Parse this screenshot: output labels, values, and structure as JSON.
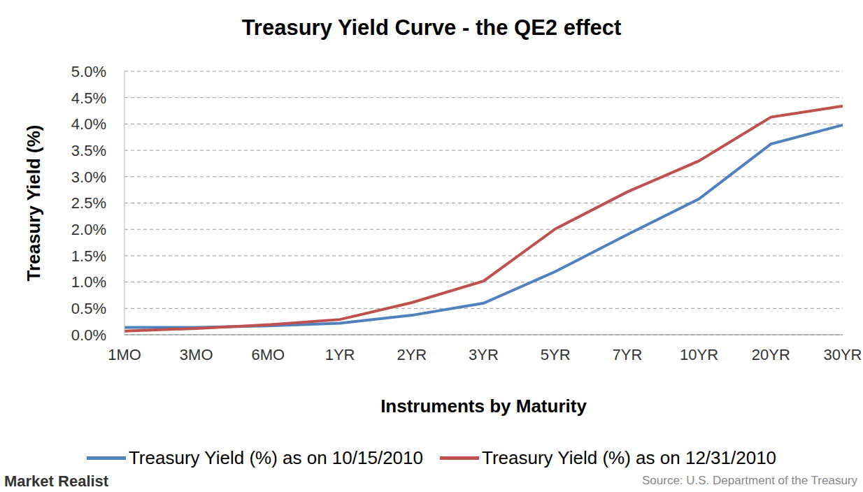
{
  "chart_data": {
    "type": "line",
    "title": "Treasury Yield Curve - the QE2 effect",
    "x_label": "Instruments by Maturity",
    "y_label": "Treasury Yield (%)",
    "categories": [
      "1MO",
      "3MO",
      "6MO",
      "1YR",
      "2YR",
      "3YR",
      "5YR",
      "7YR",
      "10YR",
      "20YR",
      "30YR"
    ],
    "series": [
      {
        "name": "Treasury Yield (%) as on 10/15/2010",
        "color": "#4f81bd",
        "values": [
          0.14,
          0.14,
          0.17,
          0.22,
          0.37,
          0.6,
          1.2,
          1.9,
          2.58,
          3.62,
          3.98
        ]
      },
      {
        "name": "Treasury Yield (%) as on 12/31/2010",
        "color": "#c0504d",
        "values": [
          0.07,
          0.12,
          0.19,
          0.29,
          0.61,
          1.02,
          2.01,
          2.71,
          3.3,
          4.13,
          4.34
        ]
      }
    ],
    "ylim": [
      0,
      5
    ],
    "yticks": [
      {
        "value": 0,
        "label": "0.0%"
      },
      {
        "value": 0.5,
        "label": "0.5%"
      },
      {
        "value": 1,
        "label": "1.0%"
      },
      {
        "value": 1.5,
        "label": "1.5%"
      },
      {
        "value": 2,
        "label": "2.0%"
      },
      {
        "value": 2.5,
        "label": "2.5%"
      },
      {
        "value": 3,
        "label": "3.0%"
      },
      {
        "value": 3.5,
        "label": "3.5%"
      },
      {
        "value": 4,
        "label": "4.0%"
      },
      {
        "value": 4.5,
        "label": "4.5%"
      },
      {
        "value": 5,
        "label": "5.0%"
      }
    ],
    "grid": true,
    "legend": "bottom",
    "credit": "Market Realist",
    "source": "Source: U.S. Department of the Treasury"
  }
}
